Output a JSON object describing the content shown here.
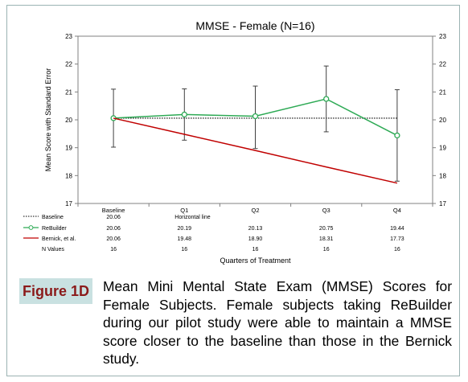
{
  "chart_data": {
    "type": "line",
    "title": "MMSE - Female (N=16)",
    "ylabel": "Mean Score with Standard Error",
    "xlabel": "Quarters of Treatment",
    "ylim": [
      17,
      23
    ],
    "yticks": [
      17,
      18,
      19,
      20,
      21,
      22,
      23
    ],
    "categories": [
      "Baseline",
      "Q1",
      "Q2",
      "Q3",
      "Q4"
    ],
    "series": [
      {
        "name": "Baseline",
        "style": "dotted",
        "color": "#000000",
        "values": [
          20.06,
          20.06,
          20.06,
          20.06,
          20.06
        ],
        "table_values": [
          "20.06",
          "Horizontal line",
          "",
          "",
          ""
        ]
      },
      {
        "name": "ReBuilder",
        "style": "line-markers",
        "color": "#2eaa55",
        "values": [
          20.06,
          20.19,
          20.13,
          20.75,
          19.44
        ],
        "error_low": [
          19.02,
          19.27,
          18.97,
          19.57,
          17.8
        ],
        "error_high": [
          21.1,
          21.11,
          21.21,
          21.93,
          21.08
        ],
        "table_values": [
          "20.06",
          "20.19",
          "20.13",
          "20.75",
          "19.44"
        ]
      },
      {
        "name": "Bernick, et al.",
        "style": "line",
        "color": "#c00000",
        "values": [
          20.06,
          19.48,
          18.9,
          18.31,
          17.73
        ],
        "table_values": [
          "20.06",
          "19.48",
          "18.90",
          "18.31",
          "17.73"
        ]
      }
    ],
    "n_values": {
      "label": "N Values",
      "values": [
        "16",
        "16",
        "16",
        "16",
        "16"
      ]
    },
    "grid": false,
    "legend": "data table below chart"
  },
  "caption": {
    "label": "Figure 1D",
    "text": "Mean Mini Mental State Exam (MMSE) Scores for Female Subjects.  Female subjects taking ReBuilder during our pilot study were able to maintain a MMSE score closer to the baseline than those in the Bernick study."
  }
}
